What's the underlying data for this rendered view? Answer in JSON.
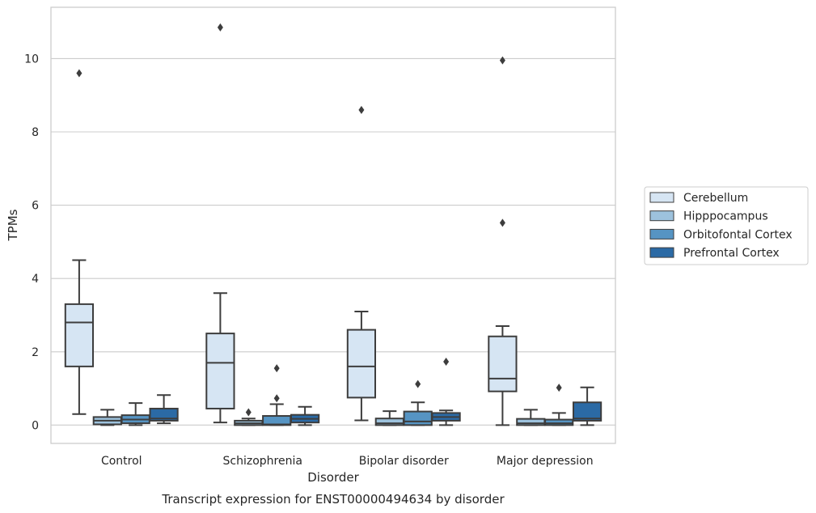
{
  "chart_data": {
    "type": "box",
    "caption": "Transcript expression for ENST00000494634 by disorder",
    "xlabel": "Disorder",
    "ylabel": "TPMs",
    "ylim": [
      -0.5,
      11.4
    ],
    "yticks": [
      0,
      2,
      4,
      6,
      8,
      10
    ],
    "grid": "horizontal",
    "legend_position": "right",
    "categories": [
      "Control",
      "Schizophrenia",
      "Bipolar disorder",
      "Major depression"
    ],
    "series": [
      {
        "name": "Cerebellum",
        "color": "#d6e5f3",
        "boxes": [
          {
            "whisker_low": 0.3,
            "q1": 1.6,
            "median": 2.8,
            "q3": 3.3,
            "whisker_high": 4.5,
            "outliers": [
              9.6
            ]
          },
          {
            "whisker_low": 0.07,
            "q1": 0.45,
            "median": 1.7,
            "q3": 2.5,
            "whisker_high": 3.6,
            "outliers": [
              10.85
            ]
          },
          {
            "whisker_low": 0.13,
            "q1": 0.75,
            "median": 1.6,
            "q3": 2.6,
            "whisker_high": 3.1,
            "outliers": [
              8.6
            ]
          },
          {
            "whisker_low": 0.0,
            "q1": 0.92,
            "median": 1.27,
            "q3": 2.42,
            "whisker_high": 2.7,
            "outliers": [
              5.52,
              9.95
            ]
          }
        ]
      },
      {
        "name": "Hipppocampus",
        "color": "#9dc2dd",
        "boxes": [
          {
            "whisker_low": 0.0,
            "q1": 0.02,
            "median": 0.12,
            "q3": 0.22,
            "whisker_high": 0.42,
            "outliers": []
          },
          {
            "whisker_low": 0.0,
            "q1": 0.0,
            "median": 0.05,
            "q3": 0.12,
            "whisker_high": 0.18,
            "outliers": [
              0.35
            ]
          },
          {
            "whisker_low": 0.0,
            "q1": 0.0,
            "median": 0.05,
            "q3": 0.18,
            "whisker_high": 0.38,
            "outliers": []
          },
          {
            "whisker_low": 0.0,
            "q1": 0.0,
            "median": 0.05,
            "q3": 0.17,
            "whisker_high": 0.42,
            "outliers": []
          }
        ]
      },
      {
        "name": "Orbitofontal Cortex",
        "color": "#5694c3",
        "boxes": [
          {
            "whisker_low": 0.0,
            "q1": 0.05,
            "median": 0.15,
            "q3": 0.27,
            "whisker_high": 0.6,
            "outliers": []
          },
          {
            "whisker_low": 0.0,
            "q1": 0.0,
            "median": 0.02,
            "q3": 0.25,
            "whisker_high": 0.57,
            "outliers": [
              0.73,
              1.55
            ]
          },
          {
            "whisker_low": 0.0,
            "q1": 0.0,
            "median": 0.1,
            "q3": 0.37,
            "whisker_high": 0.62,
            "outliers": [
              1.12
            ]
          },
          {
            "whisker_low": 0.0,
            "q1": 0.0,
            "median": 0.05,
            "q3": 0.15,
            "whisker_high": 0.33,
            "outliers": [
              1.02
            ]
          }
        ]
      },
      {
        "name": "Prefrontal Cortex",
        "color": "#2b6aa5",
        "boxes": [
          {
            "whisker_low": 0.05,
            "q1": 0.12,
            "median": 0.18,
            "q3": 0.45,
            "whisker_high": 0.82,
            "outliers": []
          },
          {
            "whisker_low": 0.0,
            "q1": 0.07,
            "median": 0.17,
            "q3": 0.28,
            "whisker_high": 0.5,
            "outliers": []
          },
          {
            "whisker_low": 0.0,
            "q1": 0.12,
            "median": 0.22,
            "q3": 0.33,
            "whisker_high": 0.4,
            "outliers": [
              1.73
            ]
          },
          {
            "whisker_low": 0.0,
            "q1": 0.12,
            "median": 0.18,
            "q3": 0.62,
            "whisker_high": 1.03,
            "outliers": []
          }
        ]
      }
    ]
  }
}
